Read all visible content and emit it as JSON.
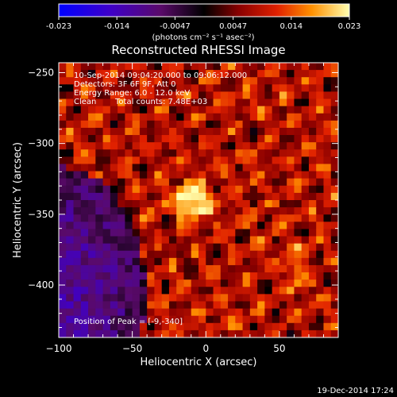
{
  "chart_data": {
    "type": "heatmap",
    "title": "Reconstructed RHESSI Image",
    "xlabel": "Heliocentric X (arcsec)",
    "ylabel": "Heliocentric Y (arcsec)",
    "xlim": [
      -100,
      90
    ],
    "ylim": [
      -437,
      -243
    ],
    "x_ticks": [
      -100,
      -50,
      0,
      50
    ],
    "y_ticks": [
      -250,
      -300,
      -350,
      -400
    ],
    "colorbar": {
      "ticks": [
        "-0.023",
        "-0.014",
        "-0.0047",
        "0.0047",
        "0.014",
        "0.023"
      ],
      "range": [
        -0.023,
        0.023
      ],
      "unit_label": "(photons cm⁻² s⁻¹ asec⁻²)"
    },
    "annotations": {
      "time_range": "10-Sep-2014 09:04:20.000 to 09:06:12.000",
      "detectors": "Detectors: 3F 6F 9F, Att 0",
      "energy": "Energy Range: 6.0 - 12.0 keV",
      "clean": "Clean",
      "total_counts": "Total counts: 7.48E+03",
      "peak": "Position of Peak = [-9,-340]"
    },
    "peak": {
      "x": -9,
      "y": -340,
      "value": 0.023
    },
    "footer_timestamp": "19-Dec-2014 17:24"
  }
}
